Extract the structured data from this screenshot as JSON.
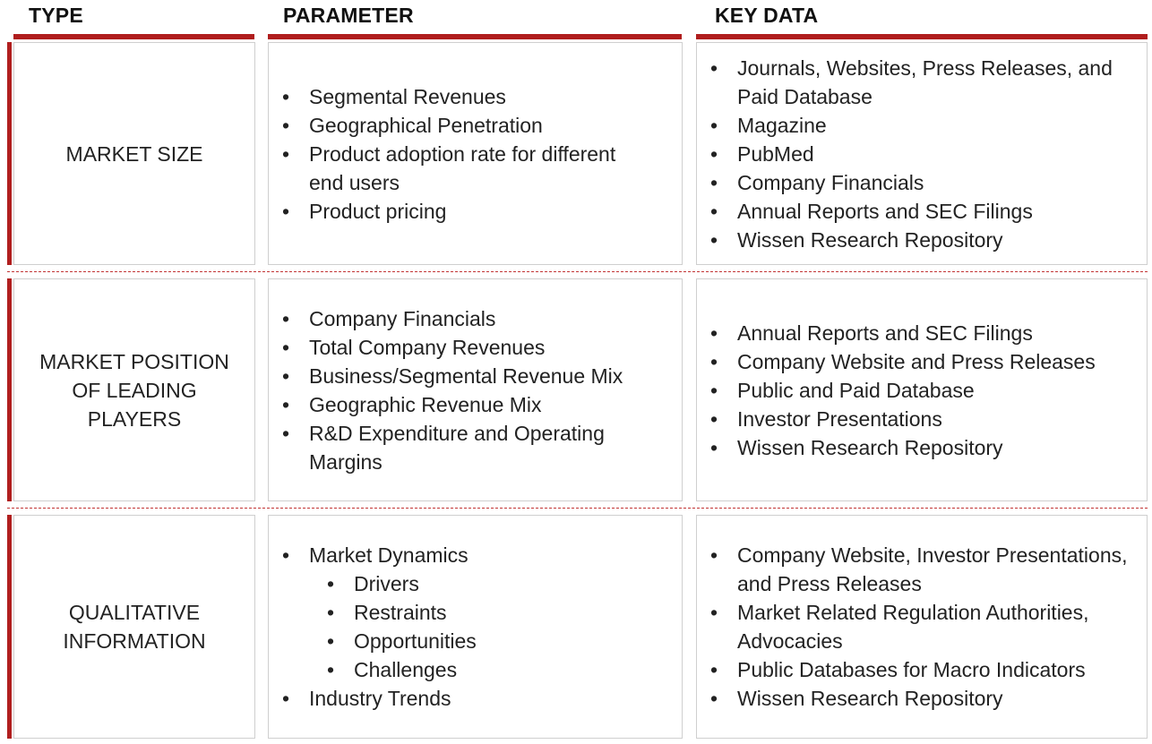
{
  "headers": {
    "type": "TYPE",
    "parameter": "PARAMETER",
    "key_data": "KEY DATA"
  },
  "colors": {
    "accent": "#b01e1e",
    "border": "#cfcfcf",
    "text": "#222222"
  },
  "rows": [
    {
      "type": "MARKET SIZE",
      "parameters": [
        "Segmental Revenues",
        "Geographical Penetration",
        "Product adoption rate for different end users",
        "Product pricing"
      ],
      "key_data": [
        "Journals, Websites, Press Releases, and Paid Database",
        "Magazine",
        "PubMed",
        "Company Financials",
        "Annual Reports and SEC Filings",
        "Wissen Research Repository"
      ]
    },
    {
      "type": "MARKET POSITION\nOF LEADING\nPLAYERS",
      "parameters": [
        "Company Financials",
        "Total Company Revenues",
        "Business/Segmental Revenue Mix",
        "Geographic Revenue Mix",
        "R&D Expenditure and Operating Margins"
      ],
      "key_data": [
        "Annual Reports and SEC Filings",
        "Company Website and Press Releases",
        "Public and Paid Database",
        "Investor Presentations",
        "Wissen Research Repository"
      ]
    },
    {
      "type": "QUALITATIVE\nINFORMATION",
      "parameters": [
        "Market Dynamics",
        "Industry Trends"
      ],
      "sub_parameters": [
        "Drivers",
        "Restraints",
        "Opportunities",
        "Challenges"
      ],
      "key_data": [
        "Company Website, Investor Presentations, and Press Releases",
        "Market Related Regulation Authorities, Advocacies",
        "Public Databases for Macro Indicators",
        "Wissen Research Repository"
      ]
    }
  ]
}
